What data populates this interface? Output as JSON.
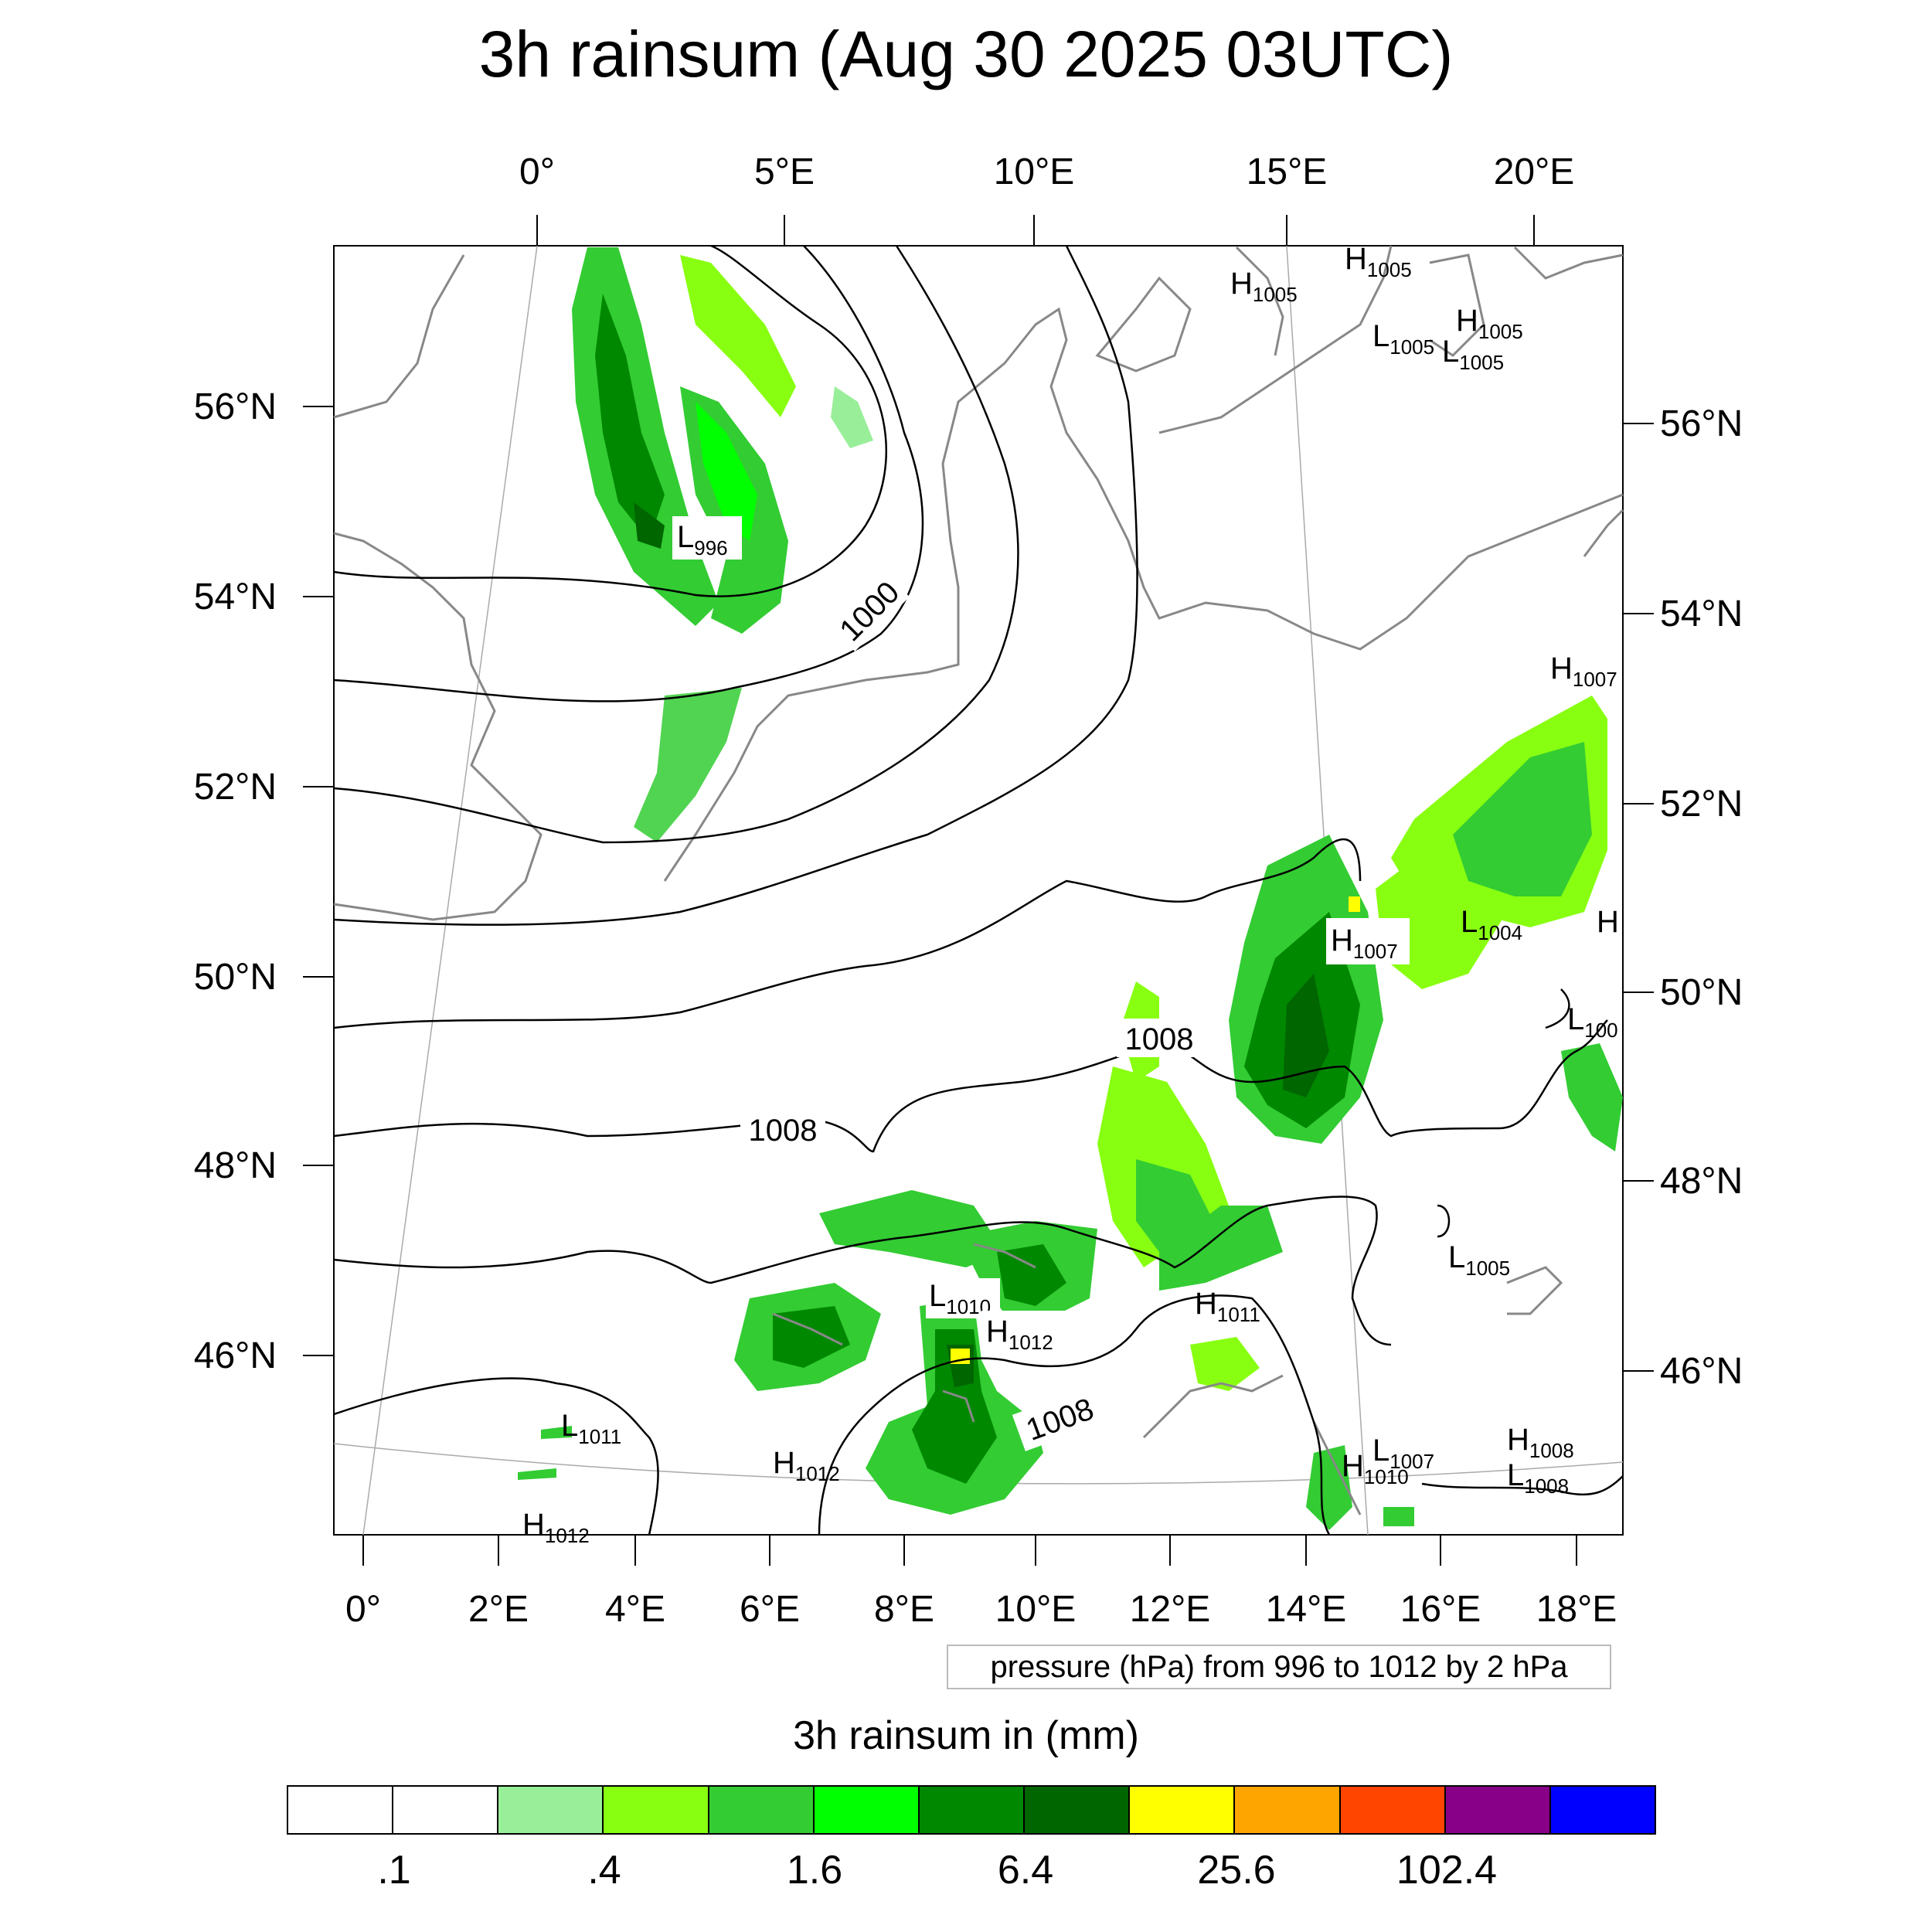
{
  "title": "3h rainsum (Aug 30 2025 03UTC)",
  "axes": {
    "top_lon_labels": [
      "0°",
      "5°E",
      "10°E",
      "15°E",
      "20°E"
    ],
    "bottom_lon_labels": [
      "0°",
      "2°E",
      "4°E",
      "6°E",
      "8°E",
      "10°E",
      "12°E",
      "14°E",
      "16°E",
      "18°E"
    ],
    "left_lat_labels": [
      "56°N",
      "54°N",
      "52°N",
      "50°N",
      "48°N",
      "46°N"
    ],
    "right_lat_labels": [
      "56°N",
      "54°N",
      "52°N",
      "50°N",
      "48°N",
      "46°N"
    ]
  },
  "contour_labels": [
    "1000",
    "1008",
    "1008",
    "1008"
  ],
  "pressure_centers": [
    {
      "type": "L",
      "value": "996"
    },
    {
      "type": "H",
      "value": "1005"
    },
    {
      "type": "H",
      "value": "1005"
    },
    {
      "type": "L",
      "value": "1005"
    },
    {
      "type": "H",
      "value": "1005"
    },
    {
      "type": "L",
      "value": "1005"
    },
    {
      "type": "H",
      "value": "1007"
    },
    {
      "type": "H",
      "value": "1007"
    },
    {
      "type": "L",
      "value": "1004"
    },
    {
      "type": "H",
      "value": ""
    },
    {
      "type": "L",
      "value": "100"
    },
    {
      "type": "L",
      "value": "1005"
    },
    {
      "type": "H",
      "value": "1011"
    },
    {
      "type": "L",
      "value": "1010"
    },
    {
      "type": "H",
      "value": "1012"
    },
    {
      "type": "L",
      "value": "1011"
    },
    {
      "type": "H",
      "value": "1012"
    },
    {
      "type": "L",
      "value": "1007"
    },
    {
      "type": "H",
      "value": "1010"
    },
    {
      "type": "H",
      "value": "1008"
    },
    {
      "type": "L",
      "value": "1008"
    },
    {
      "type": "H",
      "value": "1012"
    }
  ],
  "contour_note": "pressure (hPa) from 996 to 1012 by 2 hPa",
  "legend": {
    "title": "3h rainsum in (mm)",
    "colors": [
      "#ffffff",
      "#ffffff",
      "#99ee99",
      "#88ff11",
      "#33cc33",
      "#00ff00",
      "#008800",
      "#006600",
      "#ffff00",
      "#ffa500",
      "#ff4500",
      "#880088",
      "#0000ff"
    ],
    "tick_labels": [
      ".1",
      ".4",
      "1.6",
      "6.4",
      "25.6",
      "102.4"
    ]
  },
  "colors": {
    "coastline": "#888888",
    "isobar": "#000000"
  }
}
